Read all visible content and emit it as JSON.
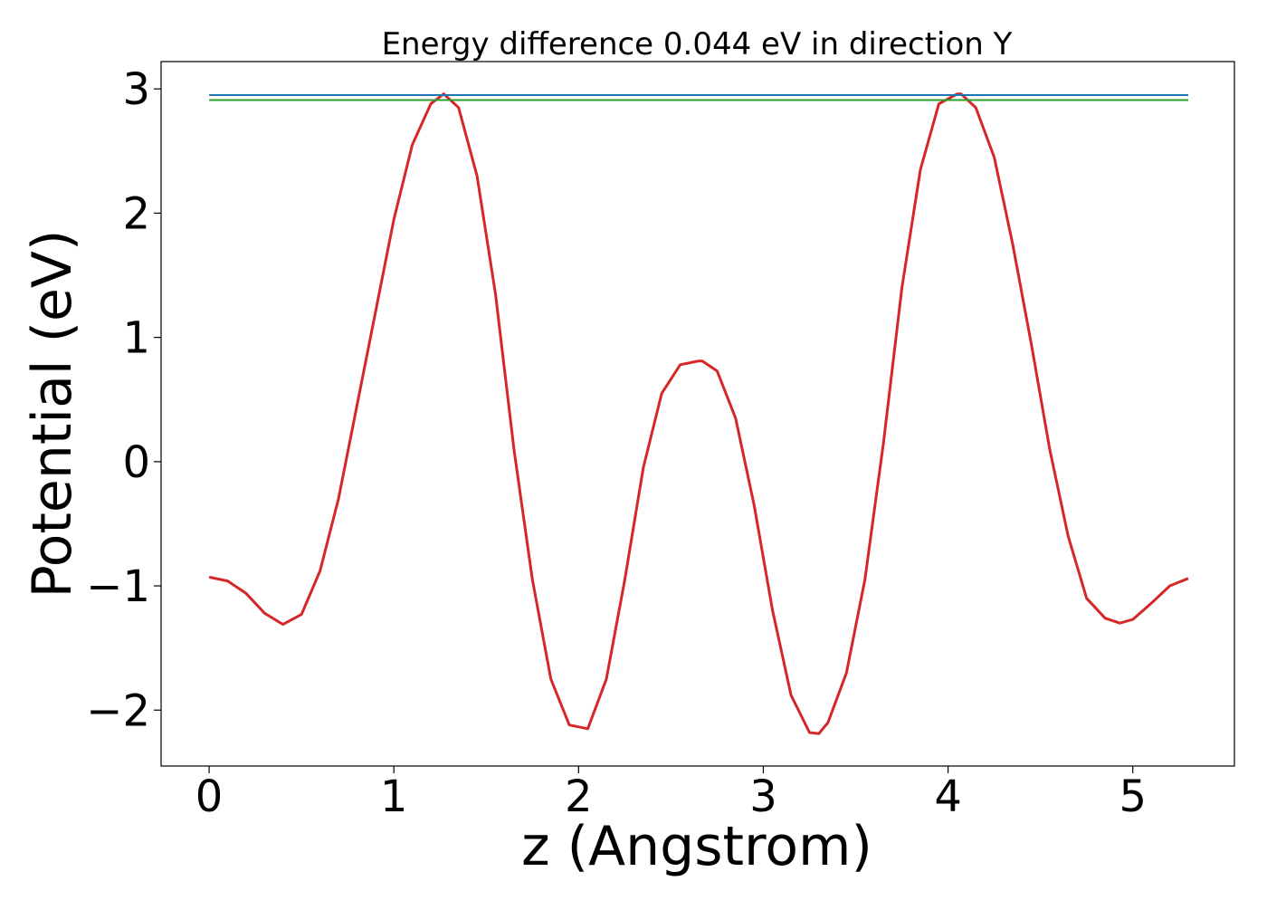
{
  "chart_data": {
    "type": "line",
    "title": "Energy difference 0.044 eV in direction Y",
    "xlabel": "z (Angstrom)",
    "ylabel": "Potential (eV)",
    "xlim": [
      -0.26,
      5.55
    ],
    "ylim": [
      -2.45,
      3.22
    ],
    "x_ticks": [
      0,
      1,
      2,
      3,
      4,
      5
    ],
    "x_tick_labels": [
      "0",
      "1",
      "2",
      "3",
      "4",
      "5"
    ],
    "y_ticks": [
      -2,
      -1,
      0,
      1,
      2,
      3
    ],
    "y_tick_labels": [
      "−2",
      "−1",
      "0",
      "1",
      "2",
      "3"
    ],
    "grid": false,
    "legend": "none",
    "series": [
      {
        "color": "#d62728",
        "x": [
          0,
          0.1,
          0.2,
          0.3,
          0.4,
          0.5,
          0.6,
          0.7,
          0.8,
          0.9,
          1.0,
          1.1,
          1.2,
          1.27,
          1.35,
          1.45,
          1.55,
          1.65,
          1.75,
          1.85,
          1.95,
          2.05,
          2.15,
          2.25,
          2.35,
          2.45,
          2.55,
          2.65,
          2.67,
          2.75,
          2.85,
          2.95,
          3.05,
          3.15,
          3.25,
          3.3,
          3.35,
          3.45,
          3.55,
          3.65,
          3.75,
          3.85,
          3.95,
          4.05,
          4.07,
          4.15,
          4.25,
          4.35,
          4.45,
          4.55,
          4.65,
          4.75,
          4.85,
          4.93,
          5.0,
          5.1,
          5.2,
          5.3
        ],
        "y": [
          -0.93,
          -0.96,
          -1.06,
          -1.22,
          -1.31,
          -1.23,
          -0.88,
          -0.3,
          0.45,
          1.2,
          1.95,
          2.55,
          2.88,
          2.96,
          2.85,
          2.3,
          1.35,
          0.1,
          -0.95,
          -1.75,
          -2.12,
          -2.15,
          -1.75,
          -0.95,
          -0.05,
          0.55,
          0.78,
          0.81,
          0.81,
          0.73,
          0.35,
          -0.35,
          -1.2,
          -1.88,
          -2.18,
          -2.19,
          -2.1,
          -1.7,
          -0.95,
          0.15,
          1.4,
          2.35,
          2.88,
          2.96,
          2.96,
          2.85,
          2.45,
          1.75,
          0.95,
          0.1,
          -0.6,
          -1.1,
          -1.26,
          -1.3,
          -1.27,
          -1.14,
          -1.0,
          -0.94
        ]
      },
      {
        "color": "#1f77b4",
        "x": [
          0,
          5.3
        ],
        "y": [
          2.95,
          2.95
        ]
      },
      {
        "color": "#2ca02c",
        "x": [
          0,
          5.3
        ],
        "y": [
          2.91,
          2.91
        ]
      }
    ]
  }
}
